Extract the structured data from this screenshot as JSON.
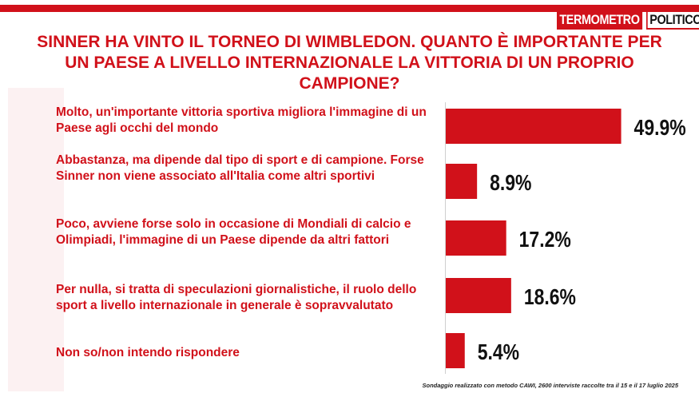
{
  "brand": {
    "logo_part1": "TERMOMETRO",
    "logo_part2": "POLITICO",
    "accent": "#d1111a"
  },
  "title": "SINNER HA VINTO IL TORNEO DI WIMBLEDON. QUANTO È IMPORTANTE PER UN PAESE A LIVELLO INTERNAZIONALE LA VITTORIA DI UN PROPRIO CAMPIONE?",
  "source": "Sondaggio realizzato con metodo CAWI, 2600 interviste raccolte tra il 15 e il 17 luglio 2025",
  "chart_data": {
    "type": "bar",
    "orientation": "horizontal",
    "categories": [
      "Molto, un'importante vittoria sportiva migliora l'immagine di un Paese agli occhi del mondo",
      "Abbastanza, ma dipende dal tipo di sport e di campione. Forse Sinner non viene associato all'Italia come altri sportivi",
      "Poco, avviene forse solo in occasione di Mondiali di calcio e Olimpiadi, l'immagine di un Paese dipende da altri fattori",
      "Per nulla, si tratta di speculazioni giornalistiche, il ruolo dello sport a livello internazionale in generale è sopravvalutato",
      "Non so/non intendo rispondere"
    ],
    "values": [
      49.9,
      8.9,
      17.2,
      18.6,
      5.4
    ],
    "value_labels": [
      "49.9%",
      "8.9%",
      "17.2%",
      "18.6%",
      "5.4%"
    ],
    "unit": "%",
    "xlim": [
      0,
      100
    ],
    "bar_color": "#d1111a",
    "grid": false,
    "legend": "none"
  }
}
